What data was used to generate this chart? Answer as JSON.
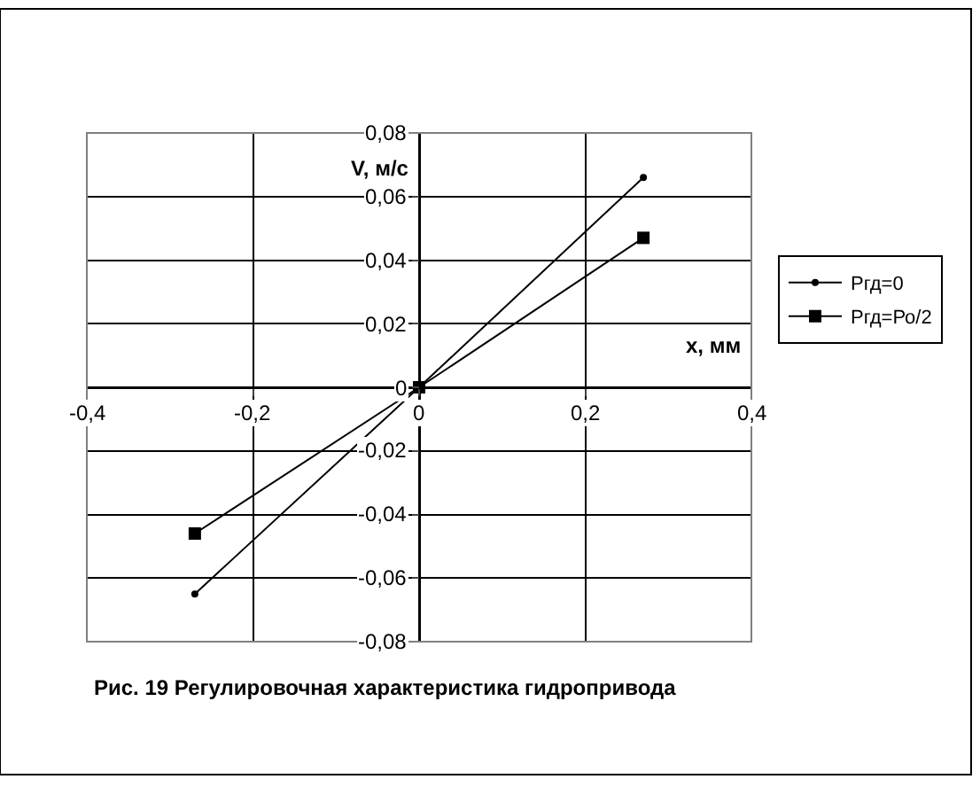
{
  "chart_data": {
    "type": "line",
    "title": "Рис. 19 Регулировочная характеристика гидропривода",
    "xlabel": "x, мм",
    "ylabel": "V, м/с",
    "series": [
      {
        "name": "Ргд=0",
        "color": "#000000",
        "x": [
          -0.27,
          0,
          0.27
        ],
        "values": [
          -0.065,
          0,
          0.066
        ],
        "marker": "circle"
      },
      {
        "name": "Ргд=Ро/2",
        "color": "#000000",
        "x": [
          -0.27,
          0,
          0.27
        ],
        "values": [
          -0.046,
          0,
          0.047
        ],
        "marker": "square"
      }
    ],
    "xlim": [
      -0.4,
      0.4
    ],
    "ylim": [
      -0.08,
      0.08
    ],
    "xticks": [
      {
        "value": -0.4,
        "label": "-0,4"
      },
      {
        "value": -0.2,
        "label": "-0,2"
      },
      0,
      {
        "value": 0.2,
        "label": "0,2"
      },
      {
        "value": 0.4,
        "label": "0,4"
      }
    ],
    "yticks": [
      {
        "value": -0.08,
        "label": "-0,08"
      },
      {
        "value": -0.06,
        "label": "-0,06"
      },
      {
        "value": -0.04,
        "label": "-0,04"
      },
      {
        "value": -0.02,
        "label": "-0,02"
      },
      0,
      {
        "value": 0.02,
        "label": "0,02"
      },
      {
        "value": 0.04,
        "label": "0,04"
      },
      {
        "value": 0.06,
        "label": "0,06"
      },
      {
        "value": 0.08,
        "label": "0,08"
      }
    ],
    "grid": true,
    "legend": "right",
    "line_style": "solid"
  }
}
